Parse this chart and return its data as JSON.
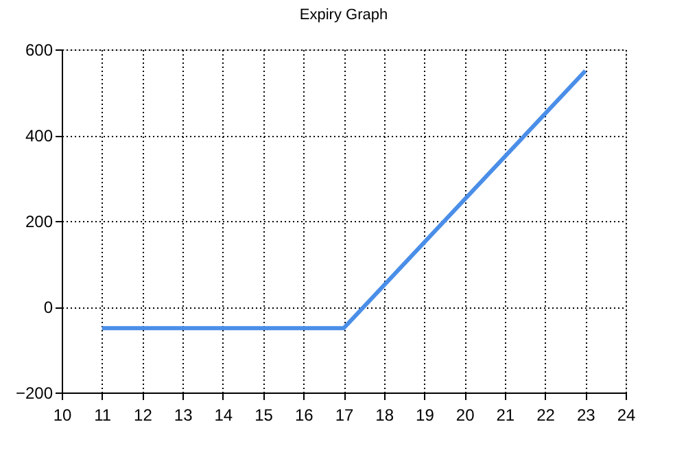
{
  "chart_data": {
    "type": "line",
    "title": "Expiry Graph",
    "x": [
      11,
      17,
      23
    ],
    "series": [
      {
        "color": "#4a8ee8",
        "values": [
          -50,
          -50,
          550
        ]
      }
    ],
    "xlim": [
      10,
      24
    ],
    "xticks": [
      10,
      11,
      12,
      13,
      14,
      15,
      16,
      17,
      18,
      19,
      20,
      21,
      22,
      23,
      24
    ],
    "ylim": [
      -200,
      600
    ],
    "yticks": [
      -200,
      0,
      200,
      400,
      600
    ],
    "grid": true,
    "marker": "none",
    "line_style": "solid"
  }
}
